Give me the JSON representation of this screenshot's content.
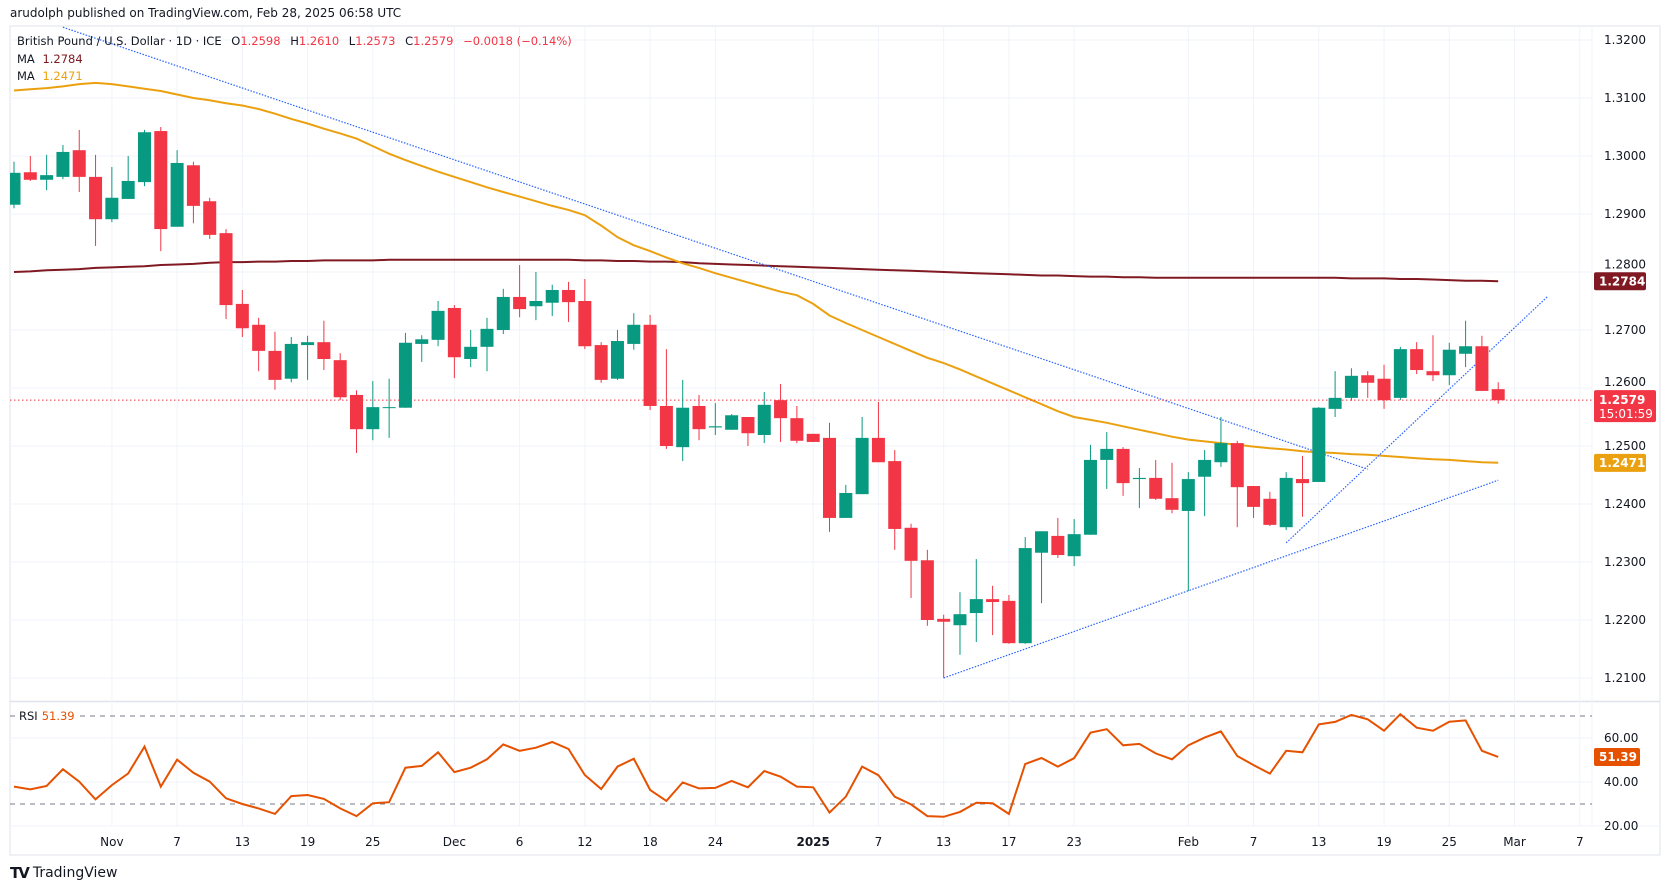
{
  "caption": "arudolph published on TradingView.com, Feb 28, 2025 06:58 UTC",
  "legend": {
    "symbol": "British Pound / U.S. Dollar · 1D · ICE",
    "o_label": "O",
    "o": "1.2598",
    "h_label": "H",
    "h": "1.2610",
    "l_label": "L",
    "l": "1.2573",
    "c_label": "C",
    "c": "1.2579",
    "change": "−0.0018 (−0.14%)",
    "ma1_label": "MA",
    "ma1": "1.2784",
    "ma2_label": "MA",
    "ma2": "1.2471"
  },
  "rsi_legend": {
    "label": "RSI",
    "value": "51.39"
  },
  "footer": {
    "logo_icon": "tradingview-logo-icon",
    "brand": "TradingView"
  },
  "colors": {
    "up": "#089981",
    "down": "#f23645",
    "ma_long": "#801922",
    "ma_short": "#eba10f",
    "rsi": "#e65100",
    "trendline": "#2962ff",
    "grid": "#f0f3fa",
    "text": "#131722"
  },
  "chart_data": {
    "type": "candlestick",
    "title": "",
    "grid": true,
    "price_axis": {
      "ylim": [
        1.205,
        1.323
      ],
      "ticks": [
        "1.2100",
        "1.2200",
        "1.2300",
        "1.2400",
        "1.2500",
        "1.2600",
        "1.2700",
        "1.2800",
        "1.2900",
        "1.3000",
        "1.3100",
        "1.3200"
      ]
    },
    "time_axis": {
      "ticks": [
        {
          "label": "Nov",
          "date": "2024-11-01"
        },
        {
          "label": "7",
          "date": "2024-11-07"
        },
        {
          "label": "13",
          "date": "2024-11-13"
        },
        {
          "label": "19",
          "date": "2024-11-19"
        },
        {
          "label": "25",
          "date": "2024-11-25"
        },
        {
          "label": "Dec",
          "date": "2024-12-02"
        },
        {
          "label": "6",
          "date": "2024-12-06"
        },
        {
          "label": "12",
          "date": "2024-12-12"
        },
        {
          "label": "18",
          "date": "2024-12-18"
        },
        {
          "label": "24",
          "date": "2024-12-24"
        },
        {
          "label": "2025",
          "date": "2025-01-01"
        },
        {
          "label": "7",
          "date": "2025-01-07"
        },
        {
          "label": "13",
          "date": "2025-01-13"
        },
        {
          "label": "17",
          "date": "2025-01-17"
        },
        {
          "label": "23",
          "date": "2025-01-23"
        },
        {
          "label": "Feb",
          "date": "2025-02-03"
        },
        {
          "label": "7",
          "date": "2025-02-07"
        },
        {
          "label": "13",
          "date": "2025-02-13"
        },
        {
          "label": "19",
          "date": "2025-02-19"
        },
        {
          "label": "25",
          "date": "2025-02-25"
        },
        {
          "label": "Mar",
          "date": "2025-03-03"
        },
        {
          "label": "7",
          "date": "2025-03-07"
        }
      ]
    },
    "candles_columns": [
      "date",
      "open",
      "high",
      "low",
      "close"
    ],
    "candles": [
      [
        "2024-10-24",
        1.2916,
        1.299,
        1.291,
        1.2971
      ],
      [
        "2024-10-25",
        1.2972,
        1.3,
        1.2957,
        1.2959
      ],
      [
        "2024-10-28",
        1.2959,
        1.3002,
        1.2941,
        1.2967
      ],
      [
        "2024-10-29",
        1.2964,
        1.3019,
        1.296,
        1.3007
      ],
      [
        "2024-10-30",
        1.301,
        1.3045,
        1.2938,
        1.2964
      ],
      [
        "2024-10-31",
        1.2964,
        1.3002,
        1.2845,
        1.2891
      ],
      [
        "2024-11-01",
        1.2891,
        1.2981,
        1.2886,
        1.2928
      ],
      [
        "2024-11-04",
        1.2926,
        1.3,
        1.2926,
        1.2957
      ],
      [
        "2024-11-05",
        1.2955,
        1.3045,
        1.2948,
        1.3041
      ],
      [
        "2024-11-06",
        1.3043,
        1.305,
        1.2836,
        1.2874
      ],
      [
        "2024-11-07",
        1.2878,
        1.301,
        1.2878,
        1.2988
      ],
      [
        "2024-11-08",
        1.2984,
        1.299,
        1.2884,
        1.2914
      ],
      [
        "2024-11-11",
        1.2922,
        1.2928,
        1.2857,
        1.2864
      ],
      [
        "2024-11-12",
        1.2867,
        1.2874,
        1.2719,
        1.2743
      ],
      [
        "2024-11-13",
        1.2745,
        1.2769,
        1.2688,
        1.2703
      ],
      [
        "2024-11-14",
        1.2709,
        1.2721,
        1.2629,
        1.2664
      ],
      [
        "2024-11-15",
        1.2664,
        1.2697,
        1.2597,
        1.2614
      ],
      [
        "2024-11-18",
        1.2616,
        1.2688,
        1.261,
        1.2676
      ],
      [
        "2024-11-19",
        1.2674,
        1.269,
        1.2614,
        1.2679
      ],
      [
        "2024-11-20",
        1.2679,
        1.2716,
        1.2631,
        1.265
      ],
      [
        "2024-11-21",
        1.2648,
        1.266,
        1.2579,
        1.2584
      ],
      [
        "2024-11-22",
        1.2588,
        1.2596,
        1.2488,
        1.2529
      ],
      [
        "2024-11-25",
        1.2529,
        1.2612,
        1.251,
        1.2567
      ],
      [
        "2024-11-26",
        1.2566,
        1.2616,
        1.2514,
        1.2567
      ],
      [
        "2024-11-27",
        1.2566,
        1.2695,
        1.2566,
        1.2678
      ],
      [
        "2024-11-28",
        1.2676,
        1.2691,
        1.2645,
        1.2684
      ],
      [
        "2024-11-29",
        1.2683,
        1.275,
        1.2672,
        1.2733
      ],
      [
        "2024-12-02",
        1.2738,
        1.2743,
        1.2617,
        1.2653
      ],
      [
        "2024-12-03",
        1.265,
        1.27,
        1.2636,
        1.2671
      ],
      [
        "2024-12-04",
        1.2671,
        1.2721,
        1.2629,
        1.2702
      ],
      [
        "2024-12-05",
        1.27,
        1.2771,
        1.2693,
        1.2757
      ],
      [
        "2024-12-06",
        1.2757,
        1.2812,
        1.2722,
        1.2736
      ],
      [
        "2024-12-09",
        1.2741,
        1.28,
        1.2717,
        1.275
      ],
      [
        "2024-12-10",
        1.2747,
        1.2778,
        1.2724,
        1.2769
      ],
      [
        "2024-12-11",
        1.2769,
        1.2783,
        1.2714,
        1.2748
      ],
      [
        "2024-12-12",
        1.275,
        1.2788,
        1.2667,
        1.2672
      ],
      [
        "2024-12-13",
        1.2674,
        1.2679,
        1.2609,
        1.2614
      ],
      [
        "2024-12-16",
        1.2616,
        1.27,
        1.2614,
        1.2681
      ],
      [
        "2024-12-17",
        1.2676,
        1.2729,
        1.2666,
        1.2709
      ],
      [
        "2024-12-18",
        1.2709,
        1.2726,
        1.2562,
        1.2569
      ],
      [
        "2024-12-19",
        1.2569,
        1.2667,
        1.2495,
        1.25
      ],
      [
        "2024-12-20",
        1.2498,
        1.2614,
        1.2474,
        1.2566
      ],
      [
        "2024-12-23",
        1.2569,
        1.2588,
        1.251,
        1.2529
      ],
      [
        "2024-12-24",
        1.2532,
        1.2574,
        1.2519,
        1.2534
      ],
      [
        "2024-12-25",
        1.2528,
        1.2555,
        1.2528,
        1.2553
      ],
      [
        "2024-12-26",
        1.255,
        1.255,
        1.25,
        1.2522
      ],
      [
        "2024-12-27",
        1.2519,
        1.2593,
        1.2505,
        1.2571
      ],
      [
        "2024-12-30",
        1.2579,
        1.2607,
        1.2507,
        1.2548
      ],
      [
        "2024-12-31",
        1.2548,
        1.2569,
        1.2505,
        1.2509
      ],
      [
        "2025-01-01",
        1.2521,
        1.2521,
        1.2507,
        1.2507
      ],
      [
        "2025-01-02",
        1.2514,
        1.254,
        1.2352,
        1.2376
      ],
      [
        "2025-01-03",
        1.2376,
        1.2433,
        1.2376,
        1.2419
      ],
      [
        "2025-01-06",
        1.2417,
        1.255,
        1.2417,
        1.2514
      ],
      [
        "2025-01-07",
        1.2514,
        1.2576,
        1.2472,
        1.2472
      ],
      [
        "2025-01-08",
        1.2474,
        1.2493,
        1.2321,
        1.2357
      ],
      [
        "2025-01-09",
        1.2359,
        1.2366,
        1.2238,
        1.2302
      ],
      [
        "2025-01-10",
        1.2303,
        1.2321,
        1.219,
        1.22
      ],
      [
        "2025-01-13",
        1.2202,
        1.2209,
        1.21,
        1.2197
      ],
      [
        "2025-01-14",
        1.2191,
        1.2248,
        1.214,
        1.221
      ],
      [
        "2025-01-15",
        1.2212,
        1.2305,
        1.2162,
        1.2236
      ],
      [
        "2025-01-16",
        1.2236,
        1.2259,
        1.2174,
        1.2231
      ],
      [
        "2025-01-17",
        1.2233,
        1.2243,
        1.2159,
        1.216
      ],
      [
        "2025-01-20",
        1.216,
        1.2343,
        1.2159,
        1.2324
      ],
      [
        "2025-01-21",
        1.2316,
        1.2353,
        1.2229,
        1.2353
      ],
      [
        "2025-01-22",
        1.2345,
        1.2376,
        1.2307,
        1.2312
      ],
      [
        "2025-01-23",
        1.231,
        1.2374,
        1.2293,
        1.2348
      ],
      [
        "2025-01-24",
        1.2347,
        1.2502,
        1.2347,
        1.2476
      ],
      [
        "2025-01-27",
        1.2476,
        1.2524,
        1.2426,
        1.2495
      ],
      [
        "2025-01-28",
        1.2495,
        1.2498,
        1.2414,
        1.2436
      ],
      [
        "2025-01-29",
        1.2443,
        1.2462,
        1.2393,
        1.2445
      ],
      [
        "2025-01-30",
        1.2445,
        1.2476,
        1.2407,
        1.2409
      ],
      [
        "2025-01-31",
        1.241,
        1.2471,
        1.2384,
        1.239
      ],
      [
        "2025-02-03",
        1.2388,
        1.2455,
        1.225,
        1.2443
      ],
      [
        "2025-02-04",
        1.2447,
        1.2493,
        1.2379,
        1.2476
      ],
      [
        "2025-02-05",
        1.2472,
        1.255,
        1.2464,
        1.2505
      ],
      [
        "2025-02-06",
        1.2505,
        1.2509,
        1.236,
        1.2429
      ],
      [
        "2025-02-07",
        1.2431,
        1.2431,
        1.2376,
        1.2395
      ],
      [
        "2025-02-10",
        1.2409,
        1.2421,
        1.2362,
        1.2364
      ],
      [
        "2025-02-11",
        1.236,
        1.2455,
        1.2355,
        1.2445
      ],
      [
        "2025-02-12",
        1.2443,
        1.2483,
        1.2378,
        1.2436
      ],
      [
        "2025-02-13",
        1.2438,
        1.2567,
        1.2438,
        1.2566
      ],
      [
        "2025-02-14",
        1.2564,
        1.2629,
        1.255,
        1.2583
      ],
      [
        "2025-02-17",
        1.2583,
        1.2634,
        1.2578,
        1.2621
      ],
      [
        "2025-02-18",
        1.2622,
        1.2629,
        1.2583,
        1.2609
      ],
      [
        "2025-02-19",
        1.2616,
        1.264,
        1.2564,
        1.2579
      ],
      [
        "2025-02-20",
        1.2583,
        1.2671,
        1.2579,
        1.2667
      ],
      [
        "2025-02-21",
        1.2667,
        1.2679,
        1.2624,
        1.2631
      ],
      [
        "2025-02-24",
        1.2629,
        1.2691,
        1.2612,
        1.2622
      ],
      [
        "2025-02-25",
        1.2622,
        1.2678,
        1.2605,
        1.2666
      ],
      [
        "2025-02-26",
        1.2659,
        1.2716,
        1.2636,
        1.2672
      ],
      [
        "2025-02-27",
        1.2672,
        1.269,
        1.2595,
        1.2595
      ],
      [
        "2025-02-28",
        1.2598,
        1.261,
        1.2573,
        1.2579
      ]
    ],
    "series": [
      {
        "name": "MA",
        "color": "#801922",
        "values": [
          1.28,
          1.2801,
          1.2803,
          1.2804,
          1.2805,
          1.2807,
          1.2808,
          1.2809,
          1.281,
          1.2812,
          1.2813,
          1.2814,
          1.2816,
          1.2817,
          1.2817,
          1.2818,
          1.2818,
          1.2819,
          1.2819,
          1.282,
          1.282,
          1.282,
          1.282,
          1.2821,
          1.2821,
          1.2821,
          1.2821,
          1.2821,
          1.2821,
          1.2821,
          1.2821,
          1.2821,
          1.2821,
          1.2821,
          1.2821,
          1.282,
          1.282,
          1.2819,
          1.2819,
          1.2818,
          1.2818,
          1.2817,
          1.2815,
          1.2814,
          1.2813,
          1.2812,
          1.2811,
          1.281,
          1.2809,
          1.2808,
          1.2807,
          1.2806,
          1.2805,
          1.2804,
          1.2803,
          1.2802,
          1.2801,
          1.28,
          1.2799,
          1.2798,
          1.2797,
          1.2796,
          1.2795,
          1.2794,
          1.2794,
          1.2793,
          1.2792,
          1.2792,
          1.2791,
          1.2791,
          1.279,
          1.279,
          1.279,
          1.279,
          1.279,
          1.279,
          1.279,
          1.279,
          1.279,
          1.279,
          1.279,
          1.279,
          1.2789,
          1.2789,
          1.2789,
          1.2788,
          1.2788,
          1.2787,
          1.2786,
          1.2785,
          1.2785,
          1.2784
        ]
      },
      {
        "name": "MA",
        "color": "#eba10f",
        "values": [
          1.3113,
          1.3115,
          1.3117,
          1.312,
          1.3124,
          1.3126,
          1.3124,
          1.312,
          1.3116,
          1.3112,
          1.3106,
          1.31,
          1.3096,
          1.3091,
          1.3087,
          1.3081,
          1.3073,
          1.3064,
          1.3056,
          1.3047,
          1.3039,
          1.303,
          1.3017,
          1.3004,
          1.2993,
          1.2983,
          1.2973,
          1.2964,
          1.2955,
          1.2946,
          1.2938,
          1.293,
          1.2922,
          1.2914,
          1.2907,
          1.2898,
          1.288,
          1.286,
          1.2846,
          1.2836,
          1.2825,
          1.2815,
          1.2807,
          1.2798,
          1.279,
          1.2782,
          1.2774,
          1.2766,
          1.276,
          1.2745,
          1.2725,
          1.2712,
          1.27,
          1.2688,
          1.2676,
          1.2664,
          1.2652,
          1.2643,
          1.2632,
          1.262,
          1.2608,
          1.2596,
          1.2584,
          1.2572,
          1.256,
          1.255,
          1.2545,
          1.254,
          1.2534,
          1.2528,
          1.2522,
          1.2516,
          1.2511,
          1.2508,
          1.2505,
          1.2502,
          1.2499,
          1.2496,
          1.2494,
          1.2491,
          1.2489,
          1.2488,
          1.2486,
          1.2485,
          1.2483,
          1.2481,
          1.2479,
          1.2477,
          1.2476,
          1.2474,
          1.2472,
          1.2471
        ]
      }
    ],
    "trendlines": [
      {
        "from": [
          "2024-10-29",
          1.3222
        ],
        "to": [
          "2025-02-18",
          1.246
        ]
      },
      {
        "from": [
          "2025-01-13",
          1.21
        ],
        "to": [
          "2025-02-28",
          1.2441
        ]
      },
      {
        "from": [
          "2025-02-11",
          1.2333
        ],
        "to": [
          "2025-03-05",
          1.2757
        ]
      }
    ],
    "last_price": {
      "value": "1.2579",
      "countdown": "15:01:59"
    },
    "ma_badges": [
      "1.2784",
      "1.2471"
    ],
    "rsi": {
      "label": "RSI",
      "ylim": [
        14,
        80
      ],
      "ticks": [
        "60.00",
        "40.00",
        "20.00"
      ],
      "bands": [
        70,
        30
      ],
      "last": "51.39",
      "values": [
        37.9,
        36.7,
        38.2,
        45.8,
        40.2,
        32.1,
        38.6,
        43.9,
        56.1,
        37.9,
        50.2,
        44.2,
        40.2,
        32.6,
        30,
        28,
        25.5,
        33.6,
        34.1,
        32.3,
        28,
        24.5,
        30.3,
        30.8,
        46.5,
        47.3,
        53.5,
        44.5,
        46.5,
        50.3,
        57.1,
        54.2,
        55.6,
        58.2,
        55,
        43.2,
        36.8,
        47,
        50.6,
        36.4,
        31.4,
        39.8,
        37.1,
        37.3,
        40.5,
        37.6,
        45,
        42.4,
        37.9,
        37.6,
        26.1,
        33.3,
        47,
        43.1,
        33.3,
        29.8,
        24.5,
        24.2,
        26.4,
        30.6,
        30.3,
        25.5,
        48.2,
        50.9,
        47,
        50.8,
        62.4,
        64,
        56.7,
        57.3,
        53,
        50.3,
        56.7,
        60.2,
        63,
        51.8,
        47.7,
        43.8,
        54.2,
        53.5,
        66.2,
        67.3,
        70.5,
        68.5,
        63.3,
        70.8,
        64.7,
        63.3,
        67.4,
        68,
        54.2,
        51.39
      ]
    }
  }
}
